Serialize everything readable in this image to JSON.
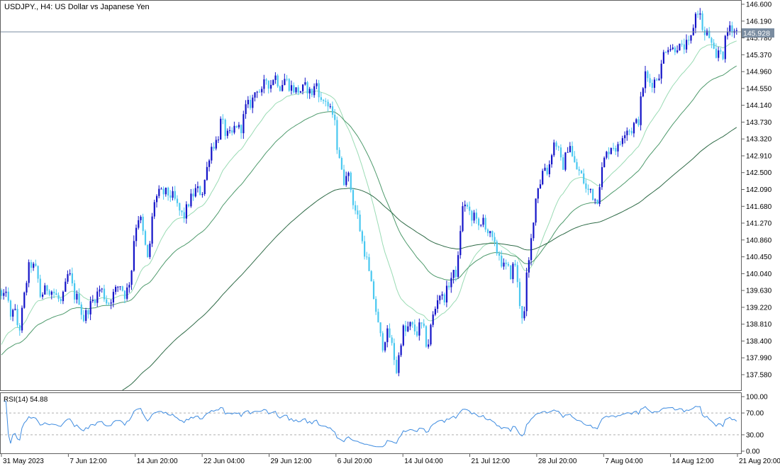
{
  "header": {
    "symbol": "USDJPY.",
    "timeframe": "H4",
    "description": "US Dollar vs Japanese Yen"
  },
  "price_badge": "145.928",
  "rsi_label": "RSI(14) 54.88",
  "colors": {
    "bull": "#1414C8",
    "bear": "#4AC8F0",
    "ma_fast": "#9ADBB4",
    "ma_mid": "#4E9A6C",
    "ma_slow": "#2F6B47",
    "rsi_line": "#3D8BE0",
    "bid_line": "#7A8CA0",
    "badge_bg": "#7A8CA0"
  },
  "chart_data": [
    {
      "type": "candlestick",
      "symbol": "USDJPY.",
      "timeframe": "H4",
      "ylim": [
        137.3,
        146.7
      ],
      "y_ticks": [
        "146.600",
        "146.190",
        "145.780",
        "145.370",
        "144.960",
        "144.550",
        "144.140",
        "143.730",
        "143.320",
        "142.910",
        "142.500",
        "142.090",
        "141.680",
        "141.270",
        "140.860",
        "140.450",
        "140.040",
        "139.630",
        "139.220",
        "138.810",
        "138.400",
        "137.990",
        "137.580"
      ],
      "x_labels": [
        "31 May 2023",
        "7 Jun 12:00",
        "14 Jun 20:00",
        "22 Jun 04:00",
        "29 Jun 12:00",
        "6 Jul 20:00",
        "14 Jul 04:00",
        "21 Jul 12:00",
        "28 Jul 20:00",
        "7 Aug 04:00",
        "14 Aug 12:00",
        "21 Aug 20:00"
      ],
      "last_price": 145.928,
      "path_points": [
        [
          0,
          139.75
        ],
        [
          8,
          139.3
        ],
        [
          10,
          139.9
        ],
        [
          18,
          138.9
        ],
        [
          22,
          139.3
        ],
        [
          30,
          138.6
        ],
        [
          40,
          139.8
        ],
        [
          45,
          140.3
        ],
        [
          55,
          140.1
        ],
        [
          60,
          139.5
        ],
        [
          70,
          139.7
        ],
        [
          78,
          139.6
        ],
        [
          90,
          139.3
        ],
        [
          100,
          140.1
        ],
        [
          108,
          139.5
        ],
        [
          115,
          139.4
        ],
        [
          120,
          138.9
        ],
        [
          128,
          139.2
        ],
        [
          135,
          139.4
        ],
        [
          145,
          139.7
        ],
        [
          155,
          139.3
        ],
        [
          165,
          139.6
        ],
        [
          172,
          139.8
        ],
        [
          180,
          139.5
        ],
        [
          188,
          140.0
        ],
        [
          193,
          141.1
        ],
        [
          200,
          141.5
        ],
        [
          205,
          141.0
        ],
        [
          212,
          140.3
        ],
        [
          220,
          141.8
        ],
        [
          228,
          142.0
        ],
        [
          238,
          142.0
        ],
        [
          248,
          141.9
        ],
        [
          255,
          141.6
        ],
        [
          262,
          141.4
        ],
        [
          270,
          141.8
        ],
        [
          280,
          142.1
        ],
        [
          288,
          142.0
        ],
        [
          295,
          142.6
        ],
        [
          300,
          143.1
        ],
        [
          305,
          143.2
        ],
        [
          310,
          143.3
        ],
        [
          315,
          143.8
        ],
        [
          322,
          143.4
        ],
        [
          330,
          143.4
        ],
        [
          336,
          143.7
        ],
        [
          342,
          143.5
        ],
        [
          350,
          144.1
        ],
        [
          358,
          144.2
        ],
        [
          365,
          144.6
        ],
        [
          372,
          144.4
        ],
        [
          378,
          144.8
        ],
        [
          384,
          144.6
        ],
        [
          390,
          144.9
        ],
        [
          398,
          144.6
        ],
        [
          405,
          144.8
        ],
        [
          412,
          144.6
        ],
        [
          420,
          144.5
        ],
        [
          428,
          144.5
        ],
        [
          435,
          144.6
        ],
        [
          442,
          144.4
        ],
        [
          450,
          144.7
        ],
        [
          456,
          144.2
        ],
        [
          462,
          144.3
        ],
        [
          468,
          144.0
        ],
        [
          474,
          143.9
        ],
        [
          478,
          143.2
        ],
        [
          482,
          142.9
        ],
        [
          487,
          142.2
        ],
        [
          492,
          142.6
        ],
        [
          497,
          142.2
        ],
        [
          502,
          141.7
        ],
        [
          508,
          141.4
        ],
        [
          514,
          140.8
        ],
        [
          520,
          140.4
        ],
        [
          526,
          139.8
        ],
        [
          532,
          139.3
        ],
        [
          538,
          138.6
        ],
        [
          543,
          138.3
        ],
        [
          548,
          138.6
        ],
        [
          553,
          138.5
        ],
        [
          558,
          138.1
        ],
        [
          563,
          137.6
        ],
        [
          566,
          138.1
        ],
        [
          571,
          138.7
        ],
        [
          576,
          138.6
        ],
        [
          580,
          138.8
        ],
        [
          586,
          138.7
        ],
        [
          591,
          138.6
        ],
        [
          596,
          138.8
        ],
        [
          600,
          138.7
        ],
        [
          606,
          138.2
        ],
        [
          612,
          138.9
        ],
        [
          617,
          139.2
        ],
        [
          622,
          139.6
        ],
        [
          628,
          139.4
        ],
        [
          633,
          139.6
        ],
        [
          638,
          139.9
        ],
        [
          642,
          140.0
        ],
        [
          648,
          140.1
        ],
        [
          654,
          141.5
        ],
        [
          658,
          141.8
        ],
        [
          663,
          141.6
        ],
        [
          668,
          141.3
        ],
        [
          674,
          141.6
        ],
        [
          679,
          141.0
        ],
        [
          685,
          141.4
        ],
        [
          690,
          141.1
        ],
        [
          696,
          140.9
        ],
        [
          703,
          140.6
        ],
        [
          708,
          140.5
        ],
        [
          712,
          140.2
        ],
        [
          718,
          140.2
        ],
        [
          724,
          140.0
        ],
        [
          729,
          140.4
        ],
        [
          734,
          139.6
        ],
        [
          738,
          139.1
        ],
        [
          742,
          138.9
        ],
        [
          746,
          140.0
        ],
        [
          750,
          140.4
        ],
        [
          754,
          141.2
        ],
        [
          758,
          141.8
        ],
        [
          762,
          142.2
        ],
        [
          766,
          142.3
        ],
        [
          770,
          142.7
        ],
        [
          776,
          142.5
        ],
        [
          781,
          143.0
        ],
        [
          786,
          143.3
        ],
        [
          791,
          143.0
        ],
        [
          796,
          142.6
        ],
        [
          801,
          142.9
        ],
        [
          806,
          143.3
        ],
        [
          811,
          142.8
        ],
        [
          816,
          142.6
        ],
        [
          821,
          142.5
        ],
        [
          826,
          142.3
        ],
        [
          831,
          142.0
        ],
        [
          836,
          142.1
        ],
        [
          840,
          141.9
        ],
        [
          845,
          141.8
        ],
        [
          850,
          142.4
        ],
        [
          855,
          142.8
        ],
        [
          860,
          143.0
        ],
        [
          866,
          143.2
        ],
        [
          871,
          143.1
        ],
        [
          876,
          143.1
        ],
        [
          882,
          143.5
        ],
        [
          888,
          143.6
        ],
        [
          893,
          143.5
        ],
        [
          898,
          143.7
        ],
        [
          903,
          143.7
        ],
        [
          908,
          144.4
        ],
        [
          913,
          144.9
        ],
        [
          918,
          144.7
        ],
        [
          924,
          144.7
        ],
        [
          929,
          144.8
        ],
        [
          935,
          145.0
        ],
        [
          940,
          145.5
        ],
        [
          946,
          145.6
        ],
        [
          952,
          145.5
        ],
        [
          958,
          145.6
        ],
        [
          964,
          145.5
        ],
        [
          970,
          145.6
        ],
        [
          976,
          145.6
        ],
        [
          981,
          146.1
        ],
        [
          986,
          146.5
        ],
        [
          991,
          146.3
        ],
        [
          996,
          145.8
        ],
        [
          1002,
          145.9
        ],
        [
          1008,
          145.5
        ],
        [
          1013,
          145.2
        ],
        [
          1018,
          145.6
        ],
        [
          1022,
          145.3
        ],
        [
          1027,
          145.8
        ],
        [
          1032,
          146.1
        ],
        [
          1037,
          146.0
        ],
        [
          1041,
          145.928
        ]
      ]
    },
    {
      "type": "line",
      "indicator": "RSI(14)",
      "last_value": 54.88,
      "ylim": [
        0,
        100
      ],
      "levels": [
        30,
        70
      ],
      "y_ticks": [
        "100.00",
        "70.00",
        "30.00",
        "0.00"
      ]
    }
  ]
}
